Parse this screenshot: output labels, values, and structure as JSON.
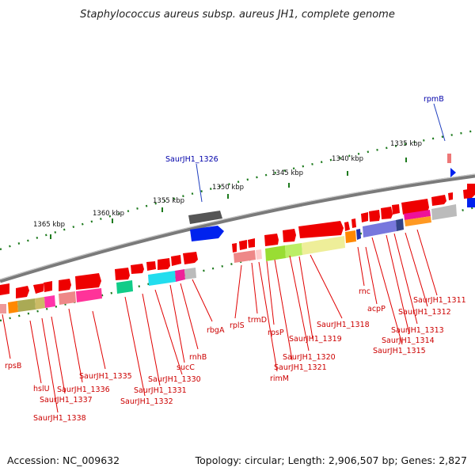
{
  "title": "Staphylococcus aureus subsp. aureus JH1, complete genome",
  "footer": {
    "accession": "Accession: NC_009632",
    "summary": "Topology: circular; Length: 2,906,507 bp; Genes: 2,827"
  },
  "scale_labels": [
    "1335 kbp",
    "1340 kbp",
    "1345 kbp",
    "1350 kbp",
    "1355 kbp",
    "1360 kbp",
    "1365 kbp"
  ],
  "top_labels": [
    "rpmB",
    "SaurJH1_1326"
  ],
  "bottom_labels": [
    "rpsB",
    "hslU",
    "SaurJH1_1338",
    "SaurJH1_1337",
    "SaurJH1_1336",
    "SaurJH1_1335",
    "SaurJH1_1332",
    "SaurJH1_1331",
    "SaurJH1_1330",
    "sucC",
    "rnhB",
    "rbgA",
    "rplS",
    "trmD",
    "rimM",
    "rpsP",
    "SaurJH1_1321",
    "SaurJH1_1320",
    "SaurJH1_1319",
    "SaurJH1_1318",
    "rnc",
    "acpP",
    "SaurJH1_1315",
    "SaurJH1_1314",
    "SaurJH1_1313",
    "SaurJH1_1312",
    "SaurJH1_1311"
  ],
  "colors": {
    "backbone": "#8a8a8a",
    "gene_red": "#ee0000",
    "label_red": "#cc0000",
    "label_blue": "#0000aa",
    "tick_green": "#1d7a1d",
    "gene_blue": "#0022ee",
    "gene_gray": "#666666"
  }
}
